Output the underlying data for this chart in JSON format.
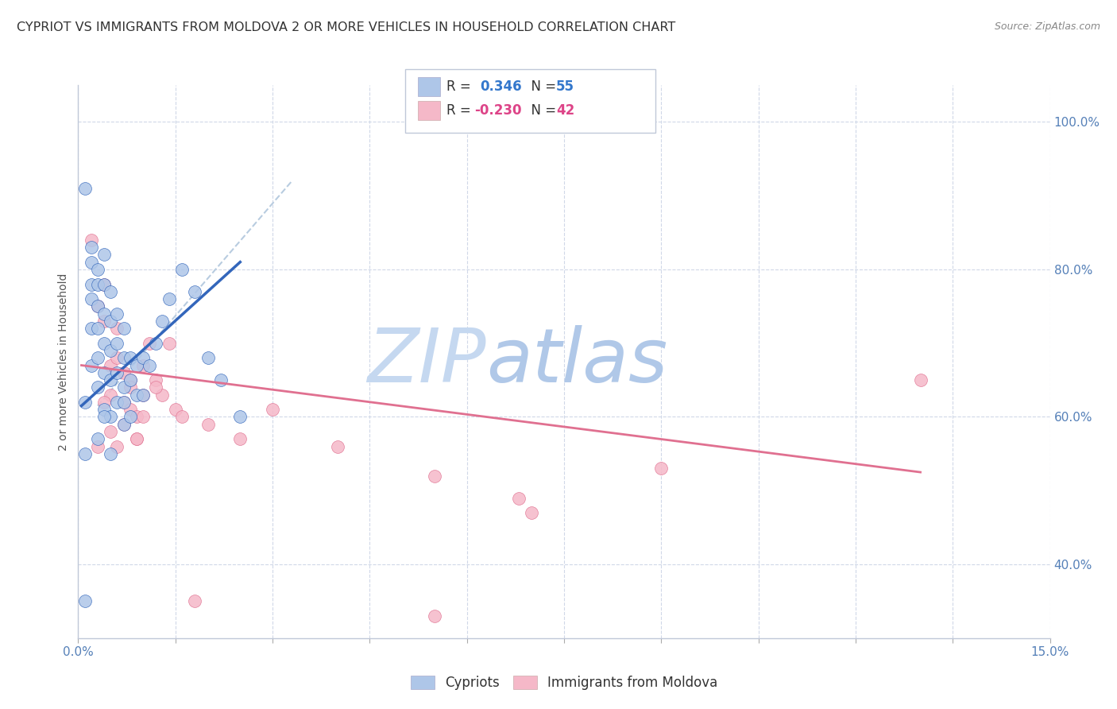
{
  "title": "CYPRIOT VS IMMIGRANTS FROM MOLDOVA 2 OR MORE VEHICLES IN HOUSEHOLD CORRELATION CHART",
  "source": "Source: ZipAtlas.com",
  "ylabel_label": "2 or more Vehicles in Household",
  "legend_label1": "Cypriots",
  "legend_label2": "Immigrants from Moldova",
  "r1": "0.346",
  "n1": "55",
  "r2": "-0.230",
  "n2": "42",
  "cypriot_color": "#aec6e8",
  "moldova_color": "#f5b8c8",
  "line1_color": "#3366bb",
  "line2_color": "#e07090",
  "dashed_line_color": "#b8cce0",
  "watermark_color_zip": "#c5d8f0",
  "watermark_color_atlas": "#b0c8e8",
  "xlim": [
    0.0,
    0.15
  ],
  "ylim": [
    0.3,
    1.05
  ],
  "background_color": "#ffffff",
  "grid_color": "#d0d8e8",
  "cypriot_x": [
    0.001,
    0.001,
    0.001,
    0.002,
    0.002,
    0.002,
    0.002,
    0.002,
    0.003,
    0.003,
    0.003,
    0.003,
    0.003,
    0.003,
    0.004,
    0.004,
    0.004,
    0.004,
    0.004,
    0.004,
    0.005,
    0.005,
    0.005,
    0.005,
    0.005,
    0.006,
    0.006,
    0.006,
    0.006,
    0.007,
    0.007,
    0.007,
    0.007,
    0.008,
    0.008,
    0.008,
    0.009,
    0.009,
    0.01,
    0.01,
    0.011,
    0.012,
    0.013,
    0.014,
    0.016,
    0.018,
    0.02,
    0.022,
    0.025,
    0.001,
    0.002,
    0.003,
    0.004,
    0.005,
    0.007
  ],
  "cypriot_y": [
    0.35,
    0.62,
    0.55,
    0.81,
    0.78,
    0.76,
    0.72,
    0.67,
    0.8,
    0.78,
    0.75,
    0.72,
    0.68,
    0.64,
    0.82,
    0.78,
    0.74,
    0.7,
    0.66,
    0.61,
    0.77,
    0.73,
    0.69,
    0.65,
    0.6,
    0.74,
    0.7,
    0.66,
    0.62,
    0.72,
    0.68,
    0.64,
    0.59,
    0.68,
    0.65,
    0.6,
    0.67,
    0.63,
    0.68,
    0.63,
    0.67,
    0.7,
    0.73,
    0.76,
    0.8,
    0.77,
    0.68,
    0.65,
    0.6,
    0.91,
    0.83,
    0.57,
    0.6,
    0.55,
    0.62
  ],
  "moldova_x": [
    0.002,
    0.003,
    0.004,
    0.004,
    0.005,
    0.005,
    0.006,
    0.006,
    0.007,
    0.007,
    0.008,
    0.008,
    0.009,
    0.009,
    0.01,
    0.01,
    0.011,
    0.012,
    0.013,
    0.014,
    0.015,
    0.016,
    0.02,
    0.025,
    0.03,
    0.04,
    0.055,
    0.068,
    0.13,
    0.003,
    0.004,
    0.005,
    0.006,
    0.007,
    0.008,
    0.009,
    0.01,
    0.012,
    0.018,
    0.09,
    0.07,
    0.055
  ],
  "moldova_y": [
    0.84,
    0.75,
    0.78,
    0.73,
    0.67,
    0.63,
    0.72,
    0.68,
    0.66,
    0.62,
    0.65,
    0.61,
    0.6,
    0.57,
    0.67,
    0.63,
    0.7,
    0.65,
    0.63,
    0.7,
    0.61,
    0.6,
    0.59,
    0.57,
    0.61,
    0.56,
    0.52,
    0.49,
    0.65,
    0.56,
    0.62,
    0.58,
    0.56,
    0.59,
    0.64,
    0.57,
    0.6,
    0.64,
    0.35,
    0.53,
    0.47,
    0.33
  ],
  "line1_x": [
    0.0005,
    0.025
  ],
  "line1_y": [
    0.615,
    0.81
  ],
  "line2_x": [
    0.0005,
    0.13
  ],
  "line2_y": [
    0.67,
    0.525
  ],
  "dashed_line_x": [
    0.003,
    0.033
  ],
  "dashed_line_y": [
    0.615,
    0.92
  ]
}
